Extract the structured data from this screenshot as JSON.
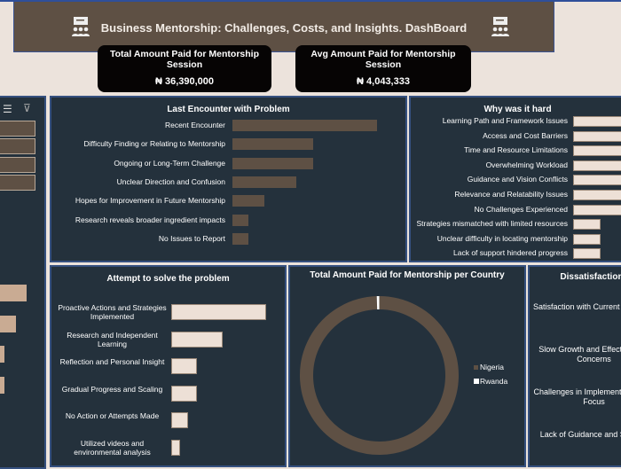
{
  "header": {
    "title": "Business Mentorship: Challenges, Costs, and Insights. DashBoard",
    "icon": "mentorship-presentation-icon"
  },
  "kpis": [
    {
      "label": "Total Amount Paid for Mentorship Session",
      "value": "₦ 36,390,000"
    },
    {
      "label": "Avg Amount  Paid for Mentorship Session",
      "value": "₦ 4,043,333"
    }
  ],
  "slicer": {
    "icons": [
      "multi-select-icon",
      "clear-filter-icon"
    ],
    "items": 4
  },
  "colors": {
    "brown": "#5e5044",
    "cream": "#ede0d6",
    "tan": "#c9ab93",
    "panel": "#24313c"
  },
  "last_encounter": {
    "title": "Last Encounter with Problem",
    "type": "bar",
    "categories": [
      "Recent Encounter",
      "Difficulty Finding or Relating to Mentorship",
      "Ongoing or Long-Term Challenge",
      "Unclear Direction and Confusion",
      "Hopes for Improvement in Future Mentorship",
      "Research reveals broader ingredient impacts",
      "No Issues to Report"
    ],
    "values": [
      9,
      5,
      5,
      4,
      2,
      1,
      1
    ]
  },
  "why_hard": {
    "title": "Why was it hard",
    "type": "bar",
    "categories": [
      "Learning Path and Framework Issues",
      "Access and Cost Barriers",
      "Time and Resource Limitations",
      "Overwhelming Workload",
      "Guidance and Vision Conflicts",
      "Relevance and Relatability Issues",
      "No Challenges Experienced",
      "Strategies mismatched with limited resources",
      "Unclear difficulty in locating mentorship",
      "Lack of support hindered progress"
    ],
    "values": [
      2,
      2,
      2,
      2,
      2,
      2,
      2,
      1,
      1,
      1
    ]
  },
  "attempt": {
    "title": "Attempt to solve the problem",
    "type": "bar",
    "categories": [
      "Proactive Actions and Strategies Implemented",
      "Research and Independent Learning",
      "Reflection and Personal Insight",
      "Gradual Progress and Scaling",
      "No Action or Attempts Made",
      "Utilized videos and environmental analysis"
    ],
    "values": [
      11,
      6,
      3,
      3,
      2,
      1
    ]
  },
  "country": {
    "title": "Total Amount  Paid for Mentorship per Country",
    "type": "pie",
    "legend": [
      "Nigeria",
      "Rwanda"
    ],
    "values_pct": [
      99.5,
      0.5
    ]
  },
  "dissatisfaction": {
    "title": "Dissatisfaction",
    "categories": [
      "Satisfaction with Current Solutions",
      "Slow Growth and Effectiveness Concerns",
      "Challenges in Implementation and Focus",
      "Lack of Guidance and Support"
    ]
  },
  "left_bars": {
    "values": [
      6,
      3.5,
      1,
      1
    ]
  }
}
